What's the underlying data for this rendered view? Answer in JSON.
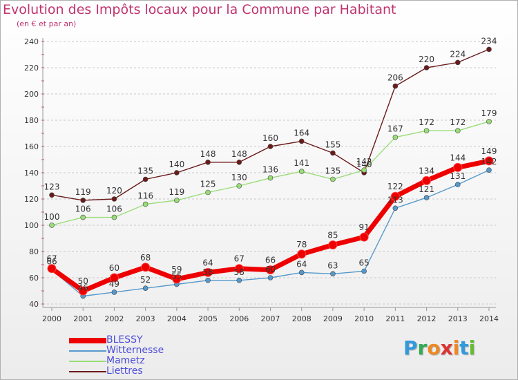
{
  "chart_data": {
    "type": "line",
    "title": "Evolution des Impôts locaux pour la Commune par Habitant",
    "subtitle": "(en € et par an)",
    "xlabel": "",
    "ylabel": "",
    "ylim": [
      40,
      240
    ],
    "yticks": [
      40,
      60,
      80,
      100,
      120,
      140,
      160,
      180,
      200,
      220,
      240
    ],
    "x": [
      2000,
      2001,
      2002,
      2003,
      2004,
      2005,
      2006,
      2007,
      2008,
      2009,
      2010,
      2011,
      2012,
      2013,
      2014
    ],
    "grid": true,
    "series": [
      {
        "name": "Liettres",
        "color": "#6b1a1a",
        "values": [
          123,
          119,
          120,
          135,
          140,
          148,
          148,
          160,
          164,
          155,
          140,
          206,
          220,
          224,
          234
        ]
      },
      {
        "name": "Mametz",
        "color": "#99dd77",
        "values": [
          100,
          106,
          106,
          116,
          119,
          125,
          130,
          136,
          141,
          135,
          142,
          167,
          172,
          172,
          179
        ]
      },
      {
        "name": "Witternesse",
        "color": "#5599cc",
        "values": [
          66,
          46,
          49,
          52,
          55,
          58,
          58,
          60,
          64,
          63,
          65,
          113,
          121,
          131,
          142
        ]
      },
      {
        "name": "BLESSY",
        "color": "#ee0000",
        "values": [
          67,
          50,
          60,
          68,
          59,
          64,
          67,
          66,
          78,
          85,
          91,
          122,
          134,
          144,
          149
        ]
      }
    ],
    "legend": [
      "BLESSY",
      "Witternesse",
      "Mametz",
      "Liettres"
    ],
    "legend_position": "bottom-left"
  },
  "logo": {
    "letters": [
      "P",
      "r",
      "o",
      "x",
      "i",
      "t",
      "i"
    ],
    "colors": [
      "#3399dd",
      "#33aa55",
      "#ee8822",
      "#dd3333",
      "#ee8822",
      "#3399dd",
      "#66bb33"
    ]
  }
}
